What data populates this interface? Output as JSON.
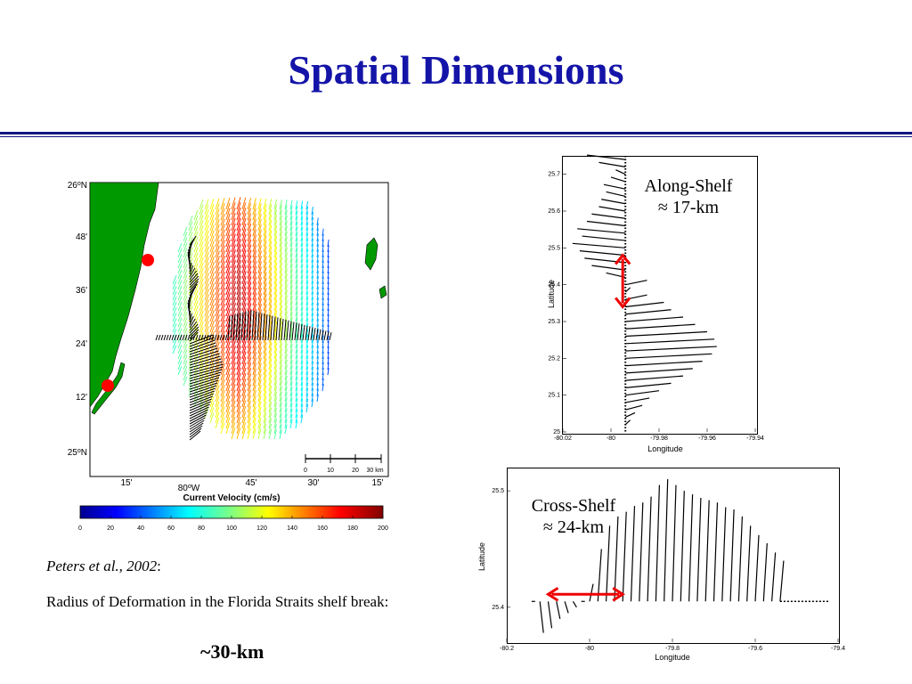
{
  "slide": {
    "title": "Spatial Dimensions",
    "citation_author": "Peters et al., 2002",
    "citation_colon": ":",
    "description": "Radius of Deformation in the Florida Straits shelf break:",
    "result": "~30-km"
  },
  "map": {
    "lat_labels": [
      {
        "deg": "26",
        "min": "",
        "hem": "N"
      },
      {
        "deg": "",
        "min": "48'",
        "hem": ""
      },
      {
        "deg": "",
        "min": "36'",
        "hem": ""
      },
      {
        "deg": "",
        "min": "24'",
        "hem": ""
      },
      {
        "deg": "",
        "min": "12'",
        "hem": ""
      },
      {
        "deg": "25",
        "min": "",
        "hem": "N"
      }
    ],
    "lon_labels": [
      "15'",
      "45'",
      "30'",
      "15'"
    ],
    "lon_main": {
      "deg": "80",
      "hem": "W"
    },
    "scale_labels": [
      "0",
      "10",
      "20",
      "30 km"
    ],
    "colorbar_title": "Current Velocity (cm/s)",
    "colorbar_ticks": [
      "0",
      "20",
      "40",
      "60",
      "80",
      "100",
      "120",
      "140",
      "160",
      "180",
      "200"
    ],
    "colors": {
      "land": "#009900",
      "marker": "#ff0000"
    }
  },
  "chart_data": [
    {
      "type": "line",
      "title": "",
      "xlabel": "Longitude",
      "ylabel": "Latitude",
      "xlim": [
        -80.02,
        -79.94
      ],
      "ylim": [
        25.0,
        25.75
      ],
      "x_ticks": [
        "-80.02",
        "-80",
        "-79.98",
        "-79.96",
        "-79.94"
      ],
      "y_ticks": [
        "25",
        "25.1",
        "25.2",
        "25.3",
        "25.4",
        "25.5",
        "25.6",
        "25.7"
      ],
      "reference_longitude": -79.994,
      "series": [
        {
          "lat": [
            25.74,
            25.72,
            25.7,
            25.68,
            25.66,
            25.64,
            25.62,
            25.6,
            25.58,
            25.56,
            25.54,
            25.52,
            25.5,
            25.48,
            25.46,
            25.44,
            25.42,
            25.4,
            25.38,
            25.36,
            25.34,
            25.32,
            25.3,
            25.28,
            25.26,
            25.24,
            25.22,
            25.2,
            25.18,
            25.16,
            25.14,
            25.12,
            25.1,
            25.08,
            25.06,
            25.04,
            25.02
          ],
          "tip_lon": [
            -80.01,
            -80.005,
            -79.998,
            -80.0,
            -80.003,
            -80.002,
            -80.004,
            -80.005,
            -80.008,
            -80.01,
            -80.014,
            -80.012,
            -80.016,
            -80.013,
            -80.011,
            -80.008,
            -80.002,
            -79.985,
            -79.992,
            -79.985,
            -79.978,
            -79.975,
            -79.97,
            -79.965,
            -79.96,
            -79.957,
            -79.956,
            -79.958,
            -79.962,
            -79.966,
            -79.97,
            -79.975,
            -79.98,
            -79.984,
            -79.987,
            -79.99,
            -79.992
          ]
        }
      ],
      "annotation": "Along-Shelf",
      "annotation_value": "≈ 17-km"
    },
    {
      "type": "line",
      "title": "",
      "xlabel": "Longitude",
      "ylabel": "Latitude",
      "xlim": [
        -80.2,
        -79.4
      ],
      "ylim": [
        25.37,
        25.52
      ],
      "x_ticks": [
        "-80.2",
        "-80",
        "-79.8",
        "-79.6",
        "-79.4"
      ],
      "y_ticks": [
        "25.4",
        "25.5"
      ],
      "reference_latitude": 25.405,
      "series": [
        {
          "lon": [
            -80.14,
            -80.12,
            -80.1,
            -80.08,
            -80.06,
            -80.04,
            -80.02,
            -80.0,
            -79.98,
            -79.96,
            -79.94,
            -79.92,
            -79.9,
            -79.88,
            -79.86,
            -79.84,
            -79.82,
            -79.8,
            -79.78,
            -79.76,
            -79.74,
            -79.72,
            -79.7,
            -79.68,
            -79.66,
            -79.64,
            -79.62,
            -79.6,
            -79.58,
            -79.56,
            -79.54
          ],
          "tip_lat": [
            25.405,
            25.378,
            25.382,
            25.39,
            25.395,
            25.4,
            25.405,
            25.42,
            25.45,
            25.47,
            25.478,
            25.482,
            25.487,
            25.49,
            25.495,
            25.505,
            25.51,
            25.505,
            25.5,
            25.497,
            25.494,
            25.492,
            25.49,
            25.486,
            25.484,
            25.478,
            25.47,
            25.462,
            25.455,
            25.447,
            25.44
          ]
        }
      ],
      "annotation": "Cross-Shelf",
      "annotation_value": "≈ 24-km"
    }
  ]
}
